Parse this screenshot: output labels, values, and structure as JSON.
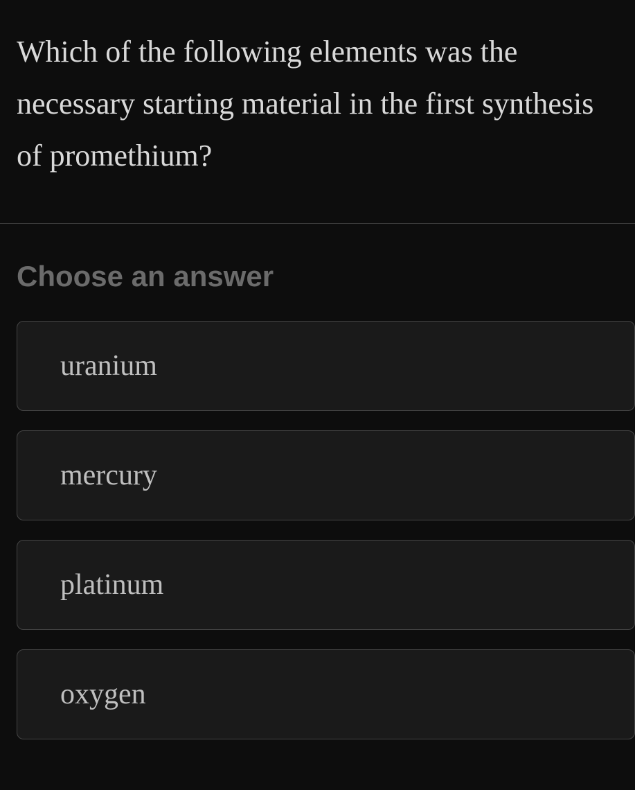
{
  "question": {
    "text": "Which of the following elements was the necessary starting material in the first synthesis of promethium?"
  },
  "prompt": {
    "label": "Choose an answer"
  },
  "answers": [
    {
      "label": "uranium"
    },
    {
      "label": "mercury"
    },
    {
      "label": "platinum"
    },
    {
      "label": "oxygen"
    }
  ],
  "colors": {
    "background": "#0d0d0d",
    "question_text": "#d9d9d9",
    "divider": "#3a3a3a",
    "prompt_text": "#6b6b6b",
    "option_bg": "#1a1a1a",
    "option_border": "#454545",
    "option_text": "#bfbfbf"
  },
  "typography": {
    "question_fontsize": 44,
    "prompt_fontsize": 42,
    "answer_fontsize": 42,
    "question_family": "Georgia, serif",
    "prompt_family": "Segoe UI, sans-serif",
    "answer_family": "Georgia, serif"
  }
}
